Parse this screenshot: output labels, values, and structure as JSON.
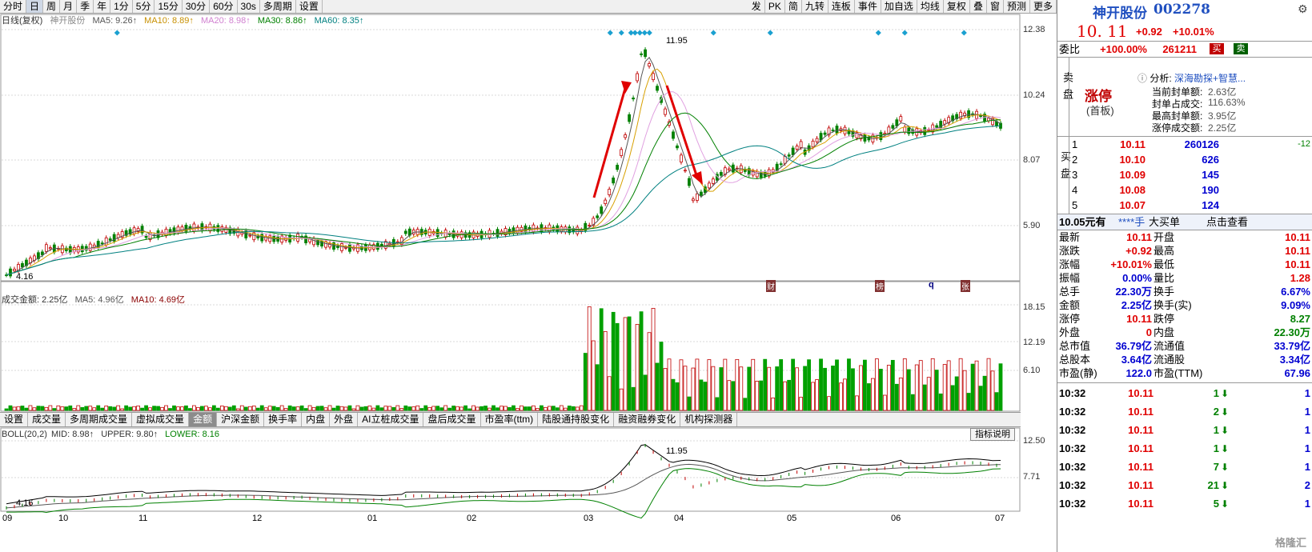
{
  "toolbar": {
    "left": [
      "分时",
      "日",
      "周",
      "月",
      "季",
      "年",
      "1分",
      "5分",
      "15分",
      "30分",
      "60分",
      "30s",
      "多周期",
      "设置"
    ],
    "active": "日",
    "right": [
      "发",
      "PK",
      "简",
      "九转",
      "连板",
      "事件",
      "加自选",
      "均线",
      "复权",
      "叠",
      "窗",
      "预测",
      "更多"
    ]
  },
  "chart": {
    "title": "日线(复权)",
    "stock_name": "神开股份",
    "ma": [
      {
        "label": "MA5: 9.26↑",
        "color": "#555555"
      },
      {
        "label": "MA10: 8.89↑",
        "color": "#d8a000"
      },
      {
        "label": "MA20: 8.98↑",
        "color": "#e0a0e0"
      },
      {
        "label": "MA30: 8.86↑",
        "color": "#008000"
      },
      {
        "label": "MA60: 8.35↑",
        "color": "#008080"
      }
    ],
    "y_labels": [
      "12.38",
      "10.24",
      "8.07",
      "5.90"
    ],
    "high_marker": "11.95",
    "low_marker": "4.16",
    "event_tags": [
      "财",
      "榜",
      "q",
      "张"
    ]
  },
  "volume": {
    "title": "成交金额: 2.25亿",
    "ma5": "MA5: 4.96亿",
    "ma10": "MA10: 4.69亿",
    "y_labels": [
      "18.15",
      "12.19",
      "6.10"
    ]
  },
  "indicator_tabs": [
    "设置",
    "成交量",
    "多周期成交量",
    "虚拟成交量",
    "金额",
    "沪深金额",
    "换手率",
    "内盘",
    "外盘",
    "AI立桩成交量",
    "盘后成交量",
    "市盈率(ttm)",
    "陆股通持股变化",
    "融资融券变化",
    "机构探测器"
  ],
  "indicator_active": "金额",
  "indicator_help": "指标说明",
  "boll": {
    "label": "BOLL(20,2)",
    "mid": "MID: 8.98↑",
    "upper": "UPPER: 9.80↑",
    "lower": "LOWER: 8.16",
    "y_labels": [
      "12.50",
      "7.71"
    ],
    "high_marker": "11.95",
    "low_marker": "4.16"
  },
  "x_labels": [
    "09",
    "10",
    "11",
    "12",
    "01",
    "02",
    "03",
    "04",
    "05",
    "06",
    "07"
  ],
  "quote": {
    "name": "神开股份",
    "code": "002278",
    "price": "10. 11",
    "change": "+0.92",
    "pct": "+10.01%",
    "weibi_label": "委比",
    "weibi": "+100.00%",
    "weicha": "261211",
    "buy_btn": "买",
    "sell_btn": "卖",
    "sell_side_label": "卖盘",
    "limit_status": "涨停",
    "limit_sub": "(首板)",
    "analysis_title": "分析:",
    "analysis_link": "深海勘探+智慧...",
    "analysis_rows": [
      {
        "k": "当前封单额:",
        "v": "2.63亿"
      },
      {
        "k": "封单占成交:",
        "v": "116.63%"
      },
      {
        "k": "最高封单额:",
        "v": "3.95亿"
      },
      {
        "k": "涨停成交额:",
        "v": "2.25亿"
      }
    ],
    "buy_side_label": "买盘",
    "bids": [
      {
        "lvl": "1",
        "price": "10.11",
        "vol": "260126",
        "chg": "-12"
      },
      {
        "lvl": "2",
        "price": "10.10",
        "vol": "626",
        "chg": ""
      },
      {
        "lvl": "3",
        "price": "10.09",
        "vol": "145",
        "chg": ""
      },
      {
        "lvl": "4",
        "price": "10.08",
        "vol": "190",
        "chg": ""
      },
      {
        "lvl": "5",
        "price": "10.07",
        "vol": "124",
        "chg": ""
      }
    ],
    "big_order": {
      "amount": "10.05元有",
      "hand": "****手",
      "label": "大买单",
      "link": "点击查看"
    },
    "stats": [
      {
        "k1": "最新",
        "v1": "10.11",
        "c1": "red",
        "k2": "开盘",
        "v2": "10.11",
        "c2": "red"
      },
      {
        "k1": "涨跌",
        "v1": "+0.92",
        "c1": "red",
        "k2": "最高",
        "v2": "10.11",
        "c2": "red"
      },
      {
        "k1": "涨幅",
        "v1": "+10.01%",
        "c1": "red",
        "k2": "最低",
        "v2": "10.11",
        "c2": "red"
      },
      {
        "k1": "振幅",
        "v1": "0.00%",
        "c1": "blue",
        "k2": "量比",
        "v2": "1.28",
        "c2": "red"
      },
      {
        "k1": "总手",
        "v1": "22.30万",
        "c1": "blue",
        "k2": "换手",
        "v2": "6.67%",
        "c2": "blue"
      },
      {
        "k1": "金额",
        "v1": "2.25亿",
        "c1": "blue",
        "k2": "换手(实)",
        "v2": "9.09%",
        "c2": "blue"
      },
      {
        "k1": "涨停",
        "v1": "10.11",
        "c1": "red",
        "k2": "跌停",
        "v2": "8.27",
        "c2": "green"
      },
      {
        "k1": "外盘",
        "v1": "0",
        "c1": "red",
        "k2": "内盘",
        "v2": "22.30万",
        "c2": "green"
      },
      {
        "k1": "总市值",
        "v1": "36.79亿",
        "c1": "blue",
        "k2": "流通值",
        "v2": "33.79亿",
        "c2": "blue"
      },
      {
        "k1": "总股本",
        "v1": "3.64亿",
        "c1": "blue",
        "k2": "流通股",
        "v2": "3.34亿",
        "c2": "blue"
      },
      {
        "k1": "市盈(静)",
        "v1": "122.0",
        "c1": "blue",
        "k2": "市盈(TTM)",
        "v2": "67.96",
        "c2": "blue"
      }
    ],
    "ticks": [
      {
        "time": "10:32",
        "price": "10.11",
        "vol": "1",
        "dir": "down",
        "n": "1"
      },
      {
        "time": "10:32",
        "price": "10.11",
        "vol": "2",
        "dir": "down",
        "n": "1"
      },
      {
        "time": "10:32",
        "price": "10.11",
        "vol": "1",
        "dir": "down",
        "n": "1"
      },
      {
        "time": "10:32",
        "price": "10.11",
        "vol": "1",
        "dir": "down",
        "n": "1"
      },
      {
        "time": "10:32",
        "price": "10.11",
        "vol": "7",
        "dir": "down",
        "n": "1"
      },
      {
        "time": "10:32",
        "price": "10.11",
        "vol": "21",
        "dir": "down",
        "n": "2"
      },
      {
        "time": "10:32",
        "price": "10.11",
        "vol": "5",
        "dir": "down",
        "n": "1"
      }
    ],
    "watermark": "格隆汇"
  }
}
